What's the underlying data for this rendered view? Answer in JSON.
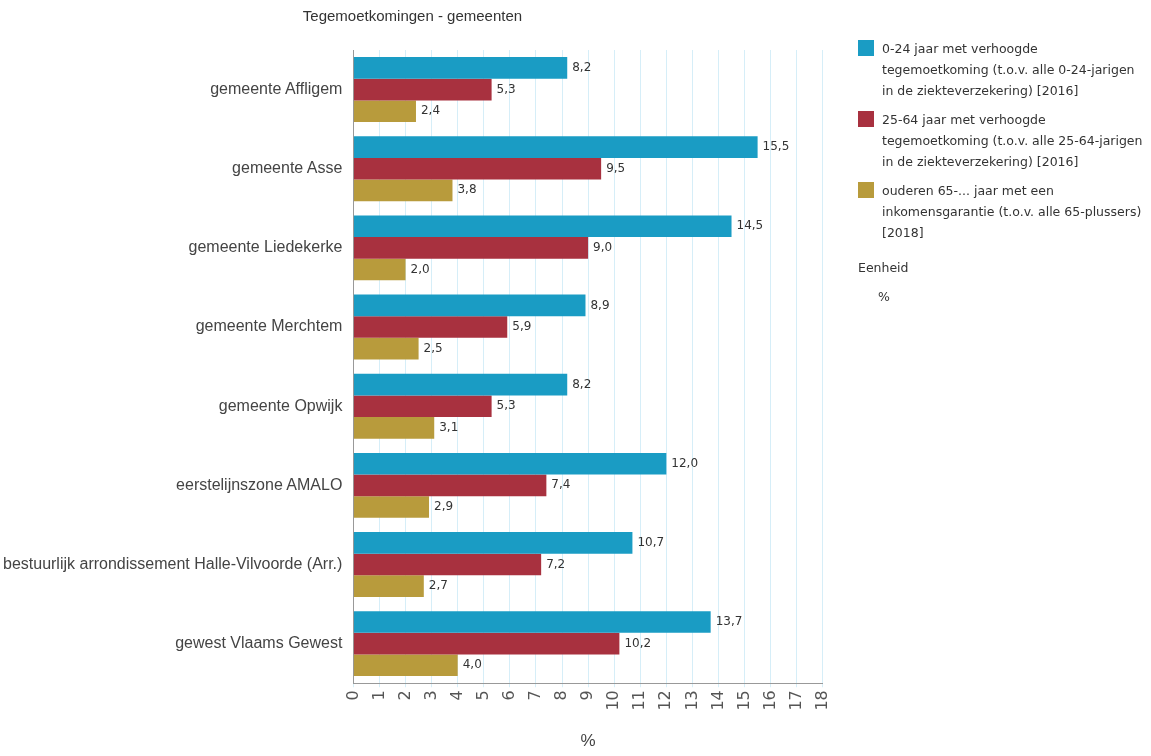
{
  "chart_data": {
    "type": "bar",
    "orientation": "horizontal",
    "title": "Tegemoetkomingen - gemeenten",
    "xlabel": "%",
    "categories": [
      "gemeente Affligem",
      "gemeente Asse",
      "gemeente Liedekerke",
      "gemeente Merchtem",
      "gemeente Opwijk",
      "eerstelijnszone AMALO",
      "bestuurlijk arrondissement Halle-Vilvoorde (Arr.)",
      "gewest Vlaams Gewest"
    ],
    "series": [
      {
        "name": "0-24 jaar met verhoogde tegemoetkoming (t.o.v. alle 0-24-jarigen in de ziekteverzekering) [2016]",
        "color": "#1a9cc4",
        "values": [
          8.2,
          15.5,
          14.5,
          8.9,
          8.2,
          12.0,
          10.7,
          13.7
        ],
        "value_labels": [
          "8,2",
          "15,5",
          "14,5",
          "8,9",
          "8,2",
          "12,0",
          "10,7",
          "13,7"
        ]
      },
      {
        "name": "25-64 jaar met verhoogde tegemoetkoming (t.o.v. alle 25-64-jarigen in de ziekteverzekering) [2016]",
        "color": "#a8313f",
        "values": [
          5.3,
          9.5,
          9.0,
          5.9,
          5.3,
          7.4,
          7.2,
          10.2
        ],
        "value_labels": [
          "5,3",
          "9,5",
          "9,0",
          "5,9",
          "5,3",
          "7,4",
          "7,2",
          "10,2"
        ]
      },
      {
        "name": "ouderen 65-... jaar met een inkomensgarantie (t.o.v. alle 65-plussers) [2018]",
        "color": "#b89b3c",
        "values": [
          2.4,
          3.8,
          2.0,
          2.5,
          3.1,
          2.9,
          2.7,
          4.0
        ],
        "value_labels": [
          "2,4",
          "3,8",
          "2,0",
          "2,5",
          "3,1",
          "2,9",
          "2,7",
          "4,0"
        ]
      }
    ],
    "xlim": [
      0,
      18
    ],
    "xticks": [
      0,
      1,
      2,
      3,
      4,
      5,
      6,
      7,
      8,
      9,
      10,
      11,
      12,
      13,
      14,
      15,
      16,
      17,
      18
    ],
    "grid": "x",
    "legend": "top right",
    "annotations": [
      "Eenheid",
      "%"
    ]
  }
}
